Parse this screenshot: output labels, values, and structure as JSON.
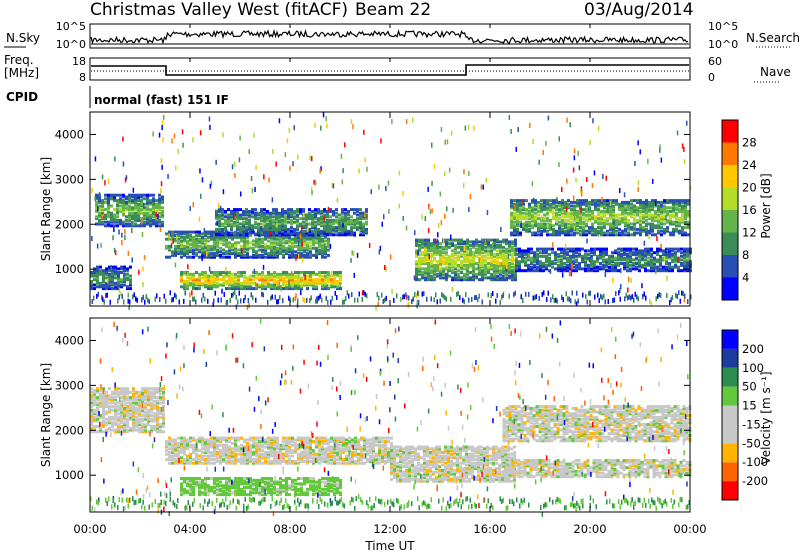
{
  "header": {
    "station": "Christmas Valley West (fitACF)",
    "beam": "Beam 22",
    "date": "03/Aug/2014"
  },
  "noise_panel": {
    "left_label": "N.Sky",
    "right_label": "N.Search",
    "left_ticks": [
      "10^5",
      "10^0"
    ],
    "right_ticks": [
      "10^5",
      "10^0"
    ]
  },
  "freq_panel": {
    "label_line1": "Freq.",
    "label_line2": "[MHz]",
    "left_ticks": [
      "18",
      "8"
    ],
    "right_label": "Nave",
    "right_ticks": [
      "60",
      "0"
    ]
  },
  "cpid": {
    "label": "CPID",
    "mode_text": "normal (fast) 151 IF"
  },
  "colors": {
    "power_scale": [
      "#0000ff",
      "#2850b4",
      "#3c8c5a",
      "#64b44b",
      "#b4dc28",
      "#ffc800",
      "#ff7800",
      "#ff0000"
    ],
    "velocity_scale": [
      "#ff0000",
      "#ff6400",
      "#ffb400",
      "#c8c8c8",
      "#c8c8c8",
      "#64c83c",
      "#2d8c50",
      "#1e3ca0",
      "#0000ff"
    ]
  },
  "chart_data": [
    {
      "type": "heatmap",
      "panel": "power",
      "ylabel": "Slant Range [km]",
      "y_ticks": [
        "1000",
        "2000",
        "3000",
        "4000"
      ],
      "ylim": [
        180,
        4500
      ],
      "colorbar_label": "Power [dB]",
      "colorbar_ticks": [
        "4",
        "8",
        "12",
        "16",
        "20",
        "24",
        "28"
      ],
      "bands": [
        {
          "from_h": 0.0,
          "to_h": 1.6,
          "range_km": [
            600,
            1100
          ],
          "level_db": 10
        },
        {
          "from_h": 0.2,
          "to_h": 2.9,
          "range_km": [
            2000,
            2700
          ],
          "level_db": 14
        },
        {
          "from_h": 3.0,
          "to_h": 9.5,
          "range_km": [
            1300,
            1900
          ],
          "level_db": 14
        },
        {
          "from_h": 3.6,
          "to_h": 10.0,
          "range_km": [
            600,
            1000
          ],
          "level_db": 22
        },
        {
          "from_h": 5.0,
          "to_h": 11.0,
          "range_km": [
            1800,
            2400
          ],
          "level_db": 12
        },
        {
          "from_h": 13.0,
          "to_h": 17.0,
          "range_km": [
            800,
            1700
          ],
          "level_db": 18
        },
        {
          "from_h": 16.8,
          "to_h": 24.0,
          "range_km": [
            1800,
            2600
          ],
          "level_db": 16
        },
        {
          "from_h": 17.0,
          "to_h": 24.0,
          "range_km": [
            1000,
            1500
          ],
          "level_db": 10
        }
      ]
    },
    {
      "type": "heatmap",
      "panel": "velocity",
      "ylabel": "Slant Range [km]",
      "y_ticks": [
        "1000",
        "2000",
        "3000",
        "4000"
      ],
      "ylim": [
        180,
        4500
      ],
      "x_ticks": [
        "00:00",
        "04:00",
        "08:00",
        "12:00",
        "16:00",
        "20:00",
        "00:00"
      ],
      "xlabel": "Time UT",
      "colorbar_label": "Velocity [m s⁻¹]",
      "colorbar_ticks": [
        "-200",
        "-100",
        "-50",
        "-15",
        "15",
        "50",
        "100",
        "200"
      ],
      "bands": [
        {
          "from_h": 0.0,
          "to_h": 2.9,
          "range_km": [
            2000,
            3000
          ],
          "level_ms": 0
        },
        {
          "from_h": 3.0,
          "to_h": 12.0,
          "range_km": [
            1300,
            1900
          ],
          "level_ms": 0
        },
        {
          "from_h": 3.6,
          "to_h": 10.0,
          "range_km": [
            600,
            1000
          ],
          "level_ms": 30
        },
        {
          "from_h": 12.0,
          "to_h": 17.0,
          "range_km": [
            900,
            1700
          ],
          "level_ms": 0
        },
        {
          "from_h": 16.5,
          "to_h": 24.0,
          "range_km": [
            1800,
            2600
          ],
          "level_ms": 0
        },
        {
          "from_h": 16.5,
          "to_h": 24.0,
          "range_km": [
            1000,
            1400
          ],
          "level_ms": 0
        }
      ]
    }
  ]
}
